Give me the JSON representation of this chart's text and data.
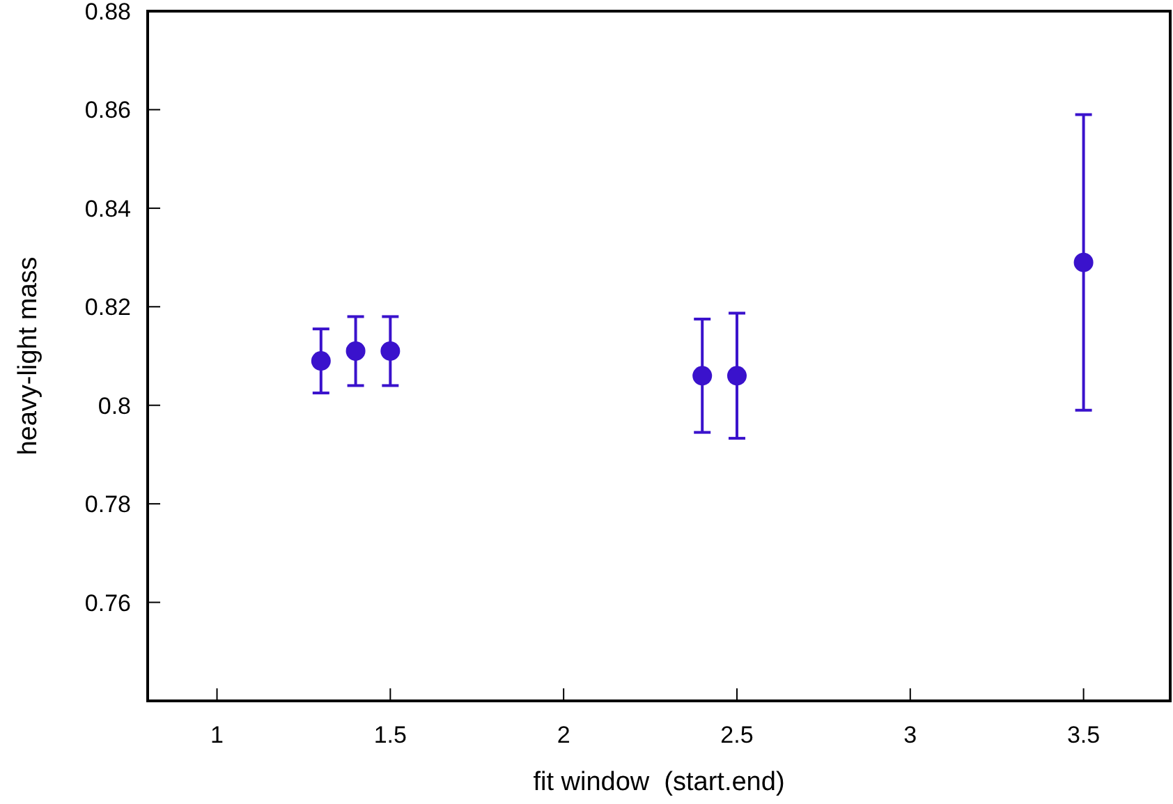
{
  "chart_data": {
    "type": "scatter",
    "xlabel": "fit window  (start.end)",
    "ylabel": "heavy-light mass",
    "x": [
      1.3,
      1.4,
      1.5,
      2.4,
      2.5,
      3.5
    ],
    "values": [
      0.809,
      0.811,
      0.811,
      0.806,
      0.806,
      0.829
    ],
    "errors": [
      0.0065,
      0.007,
      0.007,
      0.0115,
      0.0127,
      0.03
    ],
    "color": "#3a12cc",
    "marker": "circle",
    "xlim": [
      0.8,
      3.75
    ],
    "xticks": [
      1,
      1.5,
      2,
      2.5,
      3,
      3.5
    ],
    "ylim": [
      0.74,
      0.88
    ],
    "yticks": [
      0.76,
      0.78,
      0.8,
      0.82,
      0.84,
      0.86,
      0.88
    ]
  }
}
